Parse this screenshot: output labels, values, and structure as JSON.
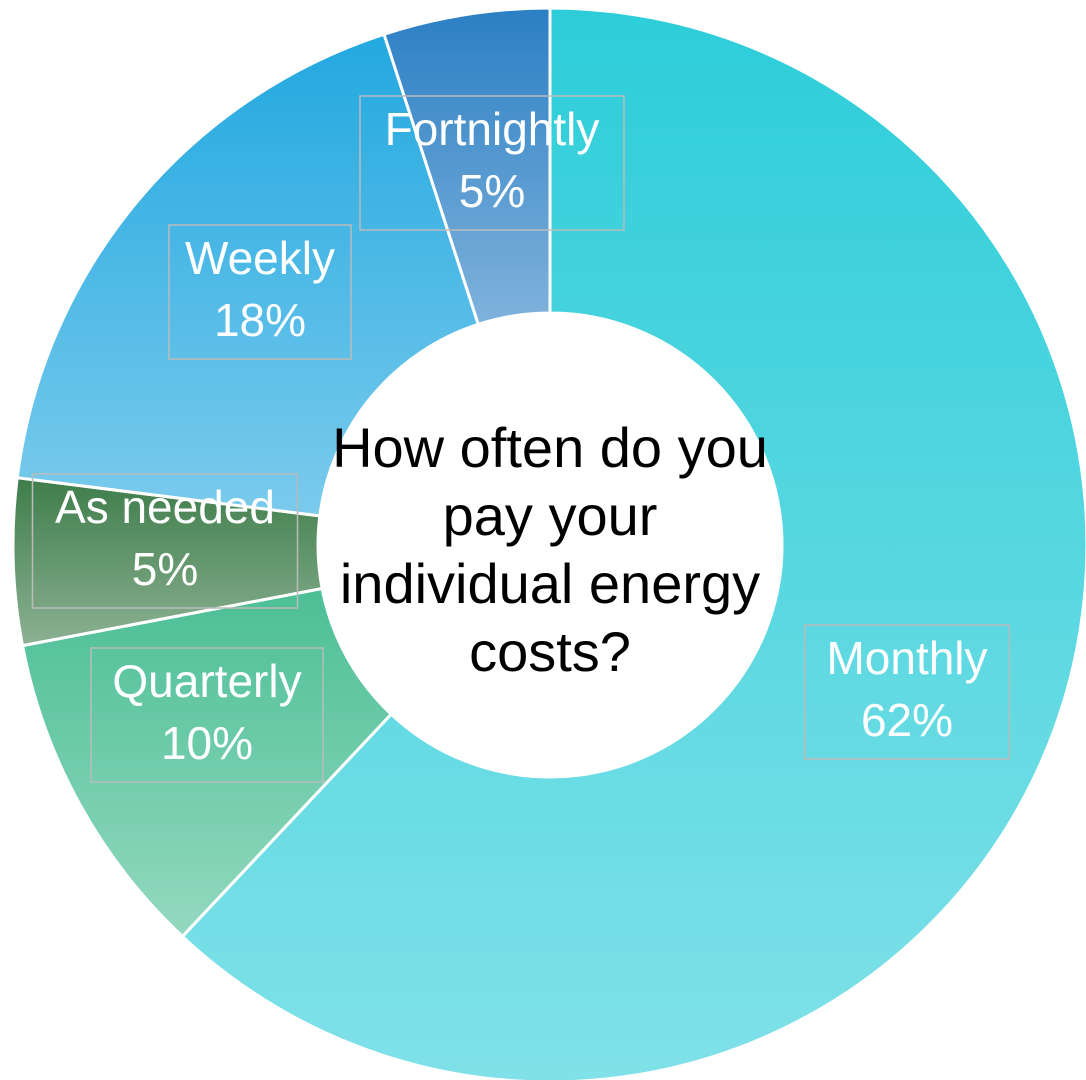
{
  "chart_data": {
    "type": "donut",
    "title": "How often do you pay your individual energy costs?",
    "categories": [
      "Monthly",
      "Quarterly",
      "As needed",
      "Weekly",
      "Fortnightly"
    ],
    "values": [
      62,
      10,
      5,
      18,
      5
    ],
    "value_labels": [
      "62%",
      "10%",
      "5%",
      "18%",
      "5%"
    ],
    "colors": [
      "#2ccdd9",
      "#4cbf96",
      "#3e7d4a",
      "#22a8e0",
      "#2b7fc4"
    ]
  }
}
